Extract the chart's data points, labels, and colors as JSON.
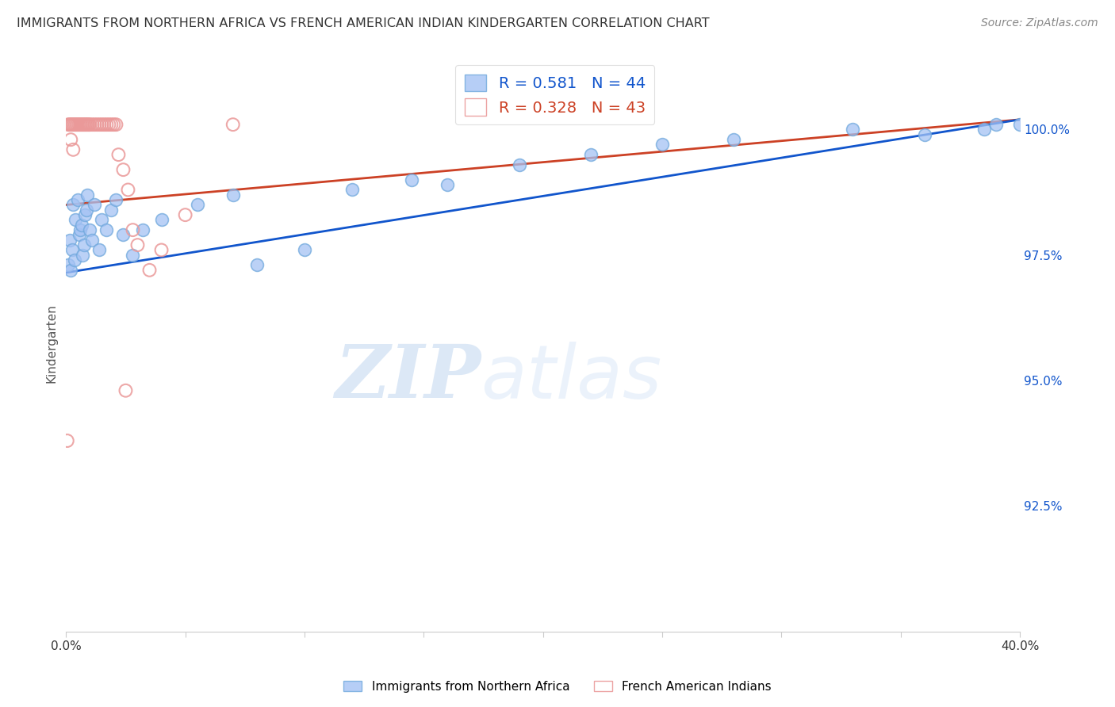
{
  "title": "IMMIGRANTS FROM NORTHERN AFRICA VS FRENCH AMERICAN INDIAN KINDERGARTEN CORRELATION CHART",
  "source": "Source: ZipAtlas.com",
  "ylabel": "Kindergarten",
  "xlim": [
    0.0,
    40.0
  ],
  "ylim": [
    90.0,
    101.5
  ],
  "yticks": [
    92.5,
    95.0,
    97.5,
    100.0
  ],
  "ytick_labels": [
    "92.5%",
    "95.0%",
    "97.5%",
    "100.0%"
  ],
  "xticks": [
    0.0,
    5.0,
    10.0,
    15.0,
    20.0,
    25.0,
    30.0,
    35.0,
    40.0
  ],
  "xtick_labels": [
    "0.0%",
    "",
    "",
    "",
    "",
    "",
    "",
    "",
    "40.0%"
  ],
  "blue_R": 0.581,
  "blue_N": 44,
  "pink_R": 0.328,
  "pink_N": 43,
  "blue_color": "#a4c2f4",
  "blue_edge_color": "#6fa8dc",
  "pink_color": "#ea9999",
  "pink_face_color": "none",
  "blue_line_color": "#1155cc",
  "pink_line_color": "#cc4125",
  "grid_color": "#cccccc",
  "background_color": "#ffffff",
  "legend_label_blue": "Immigrants from Northern Africa",
  "legend_label_pink": "French American Indians",
  "blue_x": [
    0.1,
    0.15,
    0.2,
    0.25,
    0.3,
    0.35,
    0.4,
    0.5,
    0.55,
    0.6,
    0.65,
    0.7,
    0.75,
    0.8,
    0.85,
    0.9,
    1.0,
    1.1,
    1.2,
    1.4,
    1.5,
    1.7,
    1.9,
    2.1,
    2.4,
    2.8,
    3.2,
    4.0,
    5.5,
    7.0,
    8.0,
    10.0,
    12.0,
    14.5,
    16.0,
    19.0,
    22.0,
    25.0,
    28.0,
    33.0,
    36.0,
    38.5,
    39.0,
    40.0
  ],
  "blue_y": [
    97.3,
    97.8,
    97.2,
    97.6,
    98.5,
    97.4,
    98.2,
    98.6,
    97.9,
    98.0,
    98.1,
    97.5,
    97.7,
    98.3,
    98.4,
    98.7,
    98.0,
    97.8,
    98.5,
    97.6,
    98.2,
    98.0,
    98.4,
    98.6,
    97.9,
    97.5,
    98.0,
    98.2,
    98.5,
    98.7,
    97.3,
    97.6,
    98.8,
    99.0,
    98.9,
    99.3,
    99.5,
    99.7,
    99.8,
    100.0,
    99.9,
    100.0,
    100.1,
    100.1
  ],
  "pink_x": [
    0.1,
    0.15,
    0.2,
    0.25,
    0.3,
    0.35,
    0.4,
    0.45,
    0.5,
    0.55,
    0.6,
    0.65,
    0.7,
    0.75,
    0.8,
    0.85,
    0.9,
    0.95,
    1.0,
    1.1,
    1.2,
    1.3,
    1.4,
    1.5,
    1.6,
    1.7,
    1.8,
    1.9,
    2.0,
    2.1,
    2.2,
    2.4,
    2.6,
    2.8,
    3.0,
    3.5,
    4.0,
    5.0,
    0.2,
    0.3,
    7.0,
    0.05,
    2.5
  ],
  "pink_y": [
    100.1,
    100.1,
    100.1,
    100.1,
    100.1,
    100.1,
    100.1,
    100.1,
    100.1,
    100.1,
    100.1,
    100.1,
    100.1,
    100.1,
    100.1,
    100.1,
    100.1,
    100.1,
    100.1,
    100.1,
    100.1,
    100.1,
    100.1,
    100.1,
    100.1,
    100.1,
    100.1,
    100.1,
    100.1,
    100.1,
    99.5,
    99.2,
    98.8,
    98.0,
    97.7,
    97.2,
    97.6,
    98.3,
    99.8,
    99.6,
    100.1,
    93.8,
    94.8
  ]
}
